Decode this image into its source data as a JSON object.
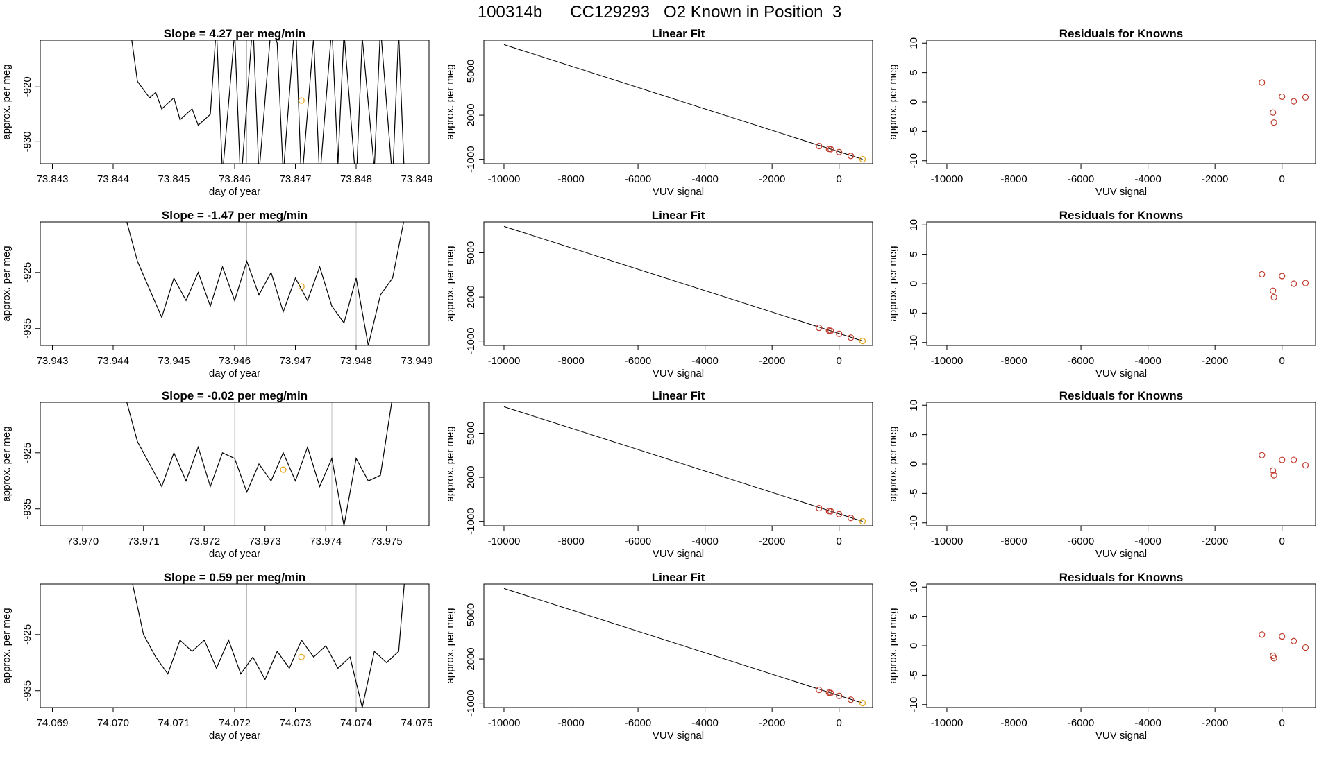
{
  "title": "100314b      CC129293   O2 Known in Position  3",
  "chart_data": [
    {
      "type": "line",
      "panel": "time-series",
      "row": 0,
      "title": "Slope =  4.27  per meg/min",
      "xlabel": "day of year",
      "ylabel": "approx. per meg",
      "xlim": [
        73.8428,
        73.8492
      ],
      "ylim": [
        -934,
        -911.5
      ],
      "xticks": [
        "73.843",
        "73.844",
        "73.845",
        "73.846",
        "73.847",
        "73.848",
        "73.849"
      ],
      "yticks": [
        "-920",
        "-930"
      ],
      "ytick_values": [
        -920,
        -930
      ],
      "x": [
        73.8443,
        73.8444,
        73.8446,
        73.8447,
        73.8448,
        73.845,
        73.8451,
        73.8453,
        73.8454,
        73.8456,
        73.8457,
        73.8458,
        73.846,
        73.8461,
        73.8463,
        73.8464,
        73.8466,
        73.8467,
        73.8468,
        73.847,
        73.8471,
        73.8473,
        73.8474,
        73.8476,
        73.8477,
        73.8478,
        73.848,
        73.8481,
        73.8483,
        73.8484,
        73.8486,
        73.8487,
        73.8488
      ],
      "y": [
        -911,
        -919,
        -922,
        -921,
        -924,
        -922,
        -926,
        -924,
        -927,
        -925,
        -909,
        -936,
        -910,
        -938,
        -908,
        -936,
        -909,
        -912,
        -936,
        -907,
        -938,
        -911,
        -937,
        -909,
        -934,
        -910,
        -938,
        -911,
        -935,
        -909,
        -937,
        -910,
        -938
      ],
      "highlight_points": [
        {
          "x": 73.8471,
          "y": -922.5
        }
      ],
      "vlines": [
        73.8462
      ]
    },
    {
      "type": "scatter",
      "panel": "linear-fit",
      "row": 0,
      "title": "Linear Fit",
      "xlabel": "VUV signal",
      "ylabel": "approx. per meg",
      "xlim": [
        -10600,
        1000
      ],
      "ylim": [
        -1300,
        7100
      ],
      "xticks": [
        "-10000",
        "-8000",
        "-6000",
        "-4000",
        "-2000",
        "0"
      ],
      "xtick_values": [
        -10000,
        -8000,
        -6000,
        -4000,
        -2000,
        0
      ],
      "yticks": [
        "-1000",
        "2000",
        "5000"
      ],
      "ytick_values": [
        -1000,
        2000,
        5000
      ],
      "fit_line": {
        "x": [
          -10000,
          700
        ],
        "y": [
          6800,
          -1000
        ]
      },
      "points": {
        "x": [
          -600,
          -300,
          -250,
          0,
          350
        ],
        "y": [
          -100,
          -290,
          -310,
          -510,
          -770
        ]
      },
      "highlight_points": [
        {
          "x": 700,
          "y": -1000
        }
      ]
    },
    {
      "type": "scatter",
      "panel": "residuals",
      "row": 0,
      "title": "Residuals for Knowns",
      "xlabel": "VUV signal",
      "ylabel": "approx. per meg",
      "xlim": [
        -10600,
        1000
      ],
      "ylim": [
        -10.5,
        10.5
      ],
      "xticks": [
        "-10000",
        "-8000",
        "-6000",
        "-4000",
        "-2000",
        "0"
      ],
      "xtick_values": [
        -10000,
        -8000,
        -6000,
        -4000,
        -2000,
        0
      ],
      "yticks": [
        "-10",
        "-5",
        "0",
        "5",
        "10"
      ],
      "ytick_values": [
        -10,
        -5,
        0,
        5,
        10
      ],
      "points": {
        "x": [
          -600,
          -270,
          -240,
          0,
          350,
          700
        ],
        "y": [
          3.3,
          -1.8,
          -3.5,
          0.9,
          0.1,
          0.8
        ]
      }
    },
    {
      "type": "line",
      "panel": "time-series",
      "row": 1,
      "title": "Slope =  -1.47  per meg/min",
      "xlabel": "day of year",
      "ylabel": "approx. per meg",
      "xlim": [
        73.9428,
        73.9492
      ],
      "ylim": [
        -938,
        -916
      ],
      "xticks": [
        "73.943",
        "73.944",
        "73.945",
        "73.946",
        "73.947",
        "73.948",
        "73.949"
      ],
      "yticks": [
        "-925",
        "-935"
      ],
      "ytick_values": [
        -925,
        -935
      ],
      "x": [
        73.9442,
        73.9444,
        73.9446,
        73.9448,
        73.945,
        73.9452,
        73.9454,
        73.9456,
        73.9458,
        73.946,
        73.9462,
        73.9464,
        73.9466,
        73.9468,
        73.947,
        73.9472,
        73.9474,
        73.9476,
        73.9478,
        73.948,
        73.9482,
        73.9484,
        73.9486,
        73.9488
      ],
      "y": [
        -915,
        -923,
        -928,
        -933,
        -926,
        -930,
        -925,
        -931,
        -924,
        -930,
        -923,
        -929,
        -925,
        -932,
        -926,
        -930,
        -924,
        -931,
        -934,
        -926,
        -938,
        -929,
        -926,
        -915
      ],
      "highlight_points": [
        {
          "x": 73.9471,
          "y": -927.5
        }
      ],
      "vlines": [
        73.9462,
        73.948
      ]
    },
    {
      "type": "scatter",
      "panel": "linear-fit",
      "row": 1,
      "title": "Linear Fit",
      "xlabel": "VUV signal",
      "ylabel": "approx. per meg",
      "xlim": [
        -10600,
        1000
      ],
      "ylim": [
        -1300,
        7100
      ],
      "xticks": [
        "-10000",
        "-8000",
        "-6000",
        "-4000",
        "-2000",
        "0"
      ],
      "xtick_values": [
        -10000,
        -8000,
        -6000,
        -4000,
        -2000,
        0
      ],
      "yticks": [
        "-1000",
        "2000",
        "5000"
      ],
      "ytick_values": [
        -1000,
        2000,
        5000
      ],
      "fit_line": {
        "x": [
          -10000,
          700
        ],
        "y": [
          6800,
          -1000
        ]
      },
      "points": {
        "x": [
          -600,
          -300,
          -250,
          0,
          350
        ],
        "y": [
          -100,
          -290,
          -310,
          -510,
          -770
        ]
      },
      "highlight_points": [
        {
          "x": 700,
          "y": -1000
        }
      ]
    },
    {
      "type": "scatter",
      "panel": "residuals",
      "row": 1,
      "title": "Residuals for Knowns",
      "xlabel": "VUV signal",
      "ylabel": "approx. per meg",
      "xlim": [
        -10600,
        1000
      ],
      "ylim": [
        -10.5,
        10.5
      ],
      "xticks": [
        "-10000",
        "-8000",
        "-6000",
        "-4000",
        "-2000",
        "0"
      ],
      "xtick_values": [
        -10000,
        -8000,
        -6000,
        -4000,
        -2000,
        0
      ],
      "yticks": [
        "-10",
        "-5",
        "0",
        "5",
        "10"
      ],
      "ytick_values": [
        -10,
        -5,
        0,
        5,
        10
      ],
      "points": {
        "x": [
          -600,
          -270,
          -240,
          0,
          350,
          700
        ],
        "y": [
          1.6,
          -1.2,
          -2.3,
          1.3,
          0.0,
          0.1
        ]
      }
    },
    {
      "type": "line",
      "panel": "time-series",
      "row": 2,
      "title": "Slope =  -0.02  per meg/min",
      "xlabel": "day of year",
      "ylabel": "approx. per meg",
      "xlim": [
        73.9693,
        73.9757
      ],
      "ylim": [
        -938,
        -916
      ],
      "xticks": [
        "73.970",
        "73.971",
        "73.972",
        "73.973",
        "73.974",
        "73.975"
      ],
      "yticks": [
        "-925",
        "-935"
      ],
      "ytick_values": [
        -925,
        -935
      ],
      "x": [
        73.9707,
        73.9709,
        73.9711,
        73.9713,
        73.9715,
        73.9717,
        73.9719,
        73.9721,
        73.9723,
        73.9725,
        73.9727,
        73.9729,
        73.9731,
        73.9733,
        73.9735,
        73.9737,
        73.9739,
        73.9741,
        73.9743,
        73.9745,
        73.9747,
        73.9749,
        73.9751
      ],
      "y": [
        -915,
        -923,
        -927,
        -931,
        -925,
        -930,
        -924,
        -931,
        -925,
        -926,
        -932,
        -927,
        -930,
        -925,
        -930,
        -924,
        -931,
        -926,
        -938,
        -926,
        -930,
        -929,
        -915
      ],
      "highlight_points": [
        {
          "x": 73.9733,
          "y": -928
        }
      ],
      "vlines": [
        73.9725,
        73.9741
      ]
    },
    {
      "type": "scatter",
      "panel": "linear-fit",
      "row": 2,
      "title": "Linear Fit",
      "xlabel": "VUV signal",
      "ylabel": "approx. per meg",
      "xlim": [
        -10600,
        1000
      ],
      "ylim": [
        -1300,
        7100
      ],
      "xticks": [
        "-10000",
        "-8000",
        "-6000",
        "-4000",
        "-2000",
        "0"
      ],
      "xtick_values": [
        -10000,
        -8000,
        -6000,
        -4000,
        -2000,
        0
      ],
      "yticks": [
        "-1000",
        "2000",
        "5000"
      ],
      "ytick_values": [
        -1000,
        2000,
        5000
      ],
      "fit_line": {
        "x": [
          -10000,
          700
        ],
        "y": [
          6800,
          -1000
        ]
      },
      "points": {
        "x": [
          -600,
          -300,
          -250,
          0,
          350
        ],
        "y": [
          -100,
          -290,
          -310,
          -510,
          -770
        ]
      },
      "highlight_points": [
        {
          "x": 700,
          "y": -1000
        }
      ]
    },
    {
      "type": "scatter",
      "panel": "residuals",
      "row": 2,
      "title": "Residuals for Knowns",
      "xlabel": "VUV signal",
      "ylabel": "approx. per meg",
      "xlim": [
        -10600,
        1000
      ],
      "ylim": [
        -10.5,
        10.5
      ],
      "xticks": [
        "-10000",
        "-8000",
        "-6000",
        "-4000",
        "-2000",
        "0"
      ],
      "xtick_values": [
        -10000,
        -8000,
        -6000,
        -4000,
        -2000,
        0
      ],
      "yticks": [
        "-10",
        "-5",
        "0",
        "5",
        "10"
      ],
      "ytick_values": [
        -10,
        -5,
        0,
        5,
        10
      ],
      "points": {
        "x": [
          -600,
          -270,
          -240,
          0,
          350,
          700
        ],
        "y": [
          1.5,
          -1.1,
          -1.9,
          0.7,
          0.7,
          -0.2
        ]
      }
    },
    {
      "type": "line",
      "panel": "time-series",
      "row": 3,
      "title": "Slope =  0.59  per meg/min",
      "xlabel": "day of year",
      "ylabel": "approx. per meg",
      "xlim": [
        74.0688,
        74.0752
      ],
      "ylim": [
        -938,
        -916
      ],
      "xticks": [
        "74.069",
        "74.070",
        "74.071",
        "74.072",
        "74.073",
        "74.074",
        "74.075"
      ],
      "yticks": [
        "-925",
        "-935"
      ],
      "ytick_values": [
        -925,
        -935
      ],
      "x": [
        74.0703,
        74.0705,
        74.0707,
        74.0709,
        74.0711,
        74.0713,
        74.0715,
        74.0717,
        74.0719,
        74.0721,
        74.0723,
        74.0725,
        74.0727,
        74.0729,
        74.0731,
        74.0733,
        74.0735,
        74.0737,
        74.0739,
        74.0741,
        74.0743,
        74.0745,
        74.0747,
        74.0748
      ],
      "y": [
        -915,
        -925,
        -929,
        -932,
        -926,
        -928,
        -926,
        -931,
        -926,
        -932,
        -929,
        -933,
        -928,
        -931,
        -926,
        -929,
        -927,
        -931,
        -929,
        -938,
        -928,
        -930,
        -928,
        -915
      ],
      "highlight_points": [
        {
          "x": 74.0731,
          "y": -929
        }
      ],
      "vlines": [
        74.0722,
        74.074
      ]
    },
    {
      "type": "scatter",
      "panel": "linear-fit",
      "row": 3,
      "title": "Linear Fit",
      "xlabel": "VUV signal",
      "ylabel": "approx. per meg",
      "xlim": [
        -10600,
        1000
      ],
      "ylim": [
        -1300,
        7100
      ],
      "xticks": [
        "-10000",
        "-8000",
        "-6000",
        "-4000",
        "-2000",
        "0"
      ],
      "xtick_values": [
        -10000,
        -8000,
        -6000,
        -4000,
        -2000,
        0
      ],
      "yticks": [
        "-1000",
        "2000",
        "5000"
      ],
      "ytick_values": [
        -1000,
        2000,
        5000
      ],
      "fit_line": {
        "x": [
          -10000,
          700
        ],
        "y": [
          6800,
          -1000
        ]
      },
      "points": {
        "x": [
          -600,
          -300,
          -250,
          0,
          350
        ],
        "y": [
          -100,
          -290,
          -310,
          -510,
          -770
        ]
      },
      "highlight_points": [
        {
          "x": 700,
          "y": -1000
        }
      ]
    },
    {
      "type": "scatter",
      "panel": "residuals",
      "row": 3,
      "title": "Residuals for Knowns",
      "xlabel": "VUV signal",
      "ylabel": "approx. per meg",
      "xlim": [
        -10600,
        1000
      ],
      "ylim": [
        -10.5,
        10.5
      ],
      "xticks": [
        "-10000",
        "-8000",
        "-6000",
        "-4000",
        "-2000",
        "0"
      ],
      "xtick_values": [
        -10000,
        -8000,
        -6000,
        -4000,
        -2000,
        0
      ],
      "yticks": [
        "-10",
        "-5",
        "0",
        "5",
        "10"
      ],
      "ytick_values": [
        -10,
        -5,
        0,
        5,
        10
      ],
      "points": {
        "x": [
          -600,
          -270,
          -240,
          0,
          350,
          700
        ],
        "y": [
          1.9,
          -1.7,
          -2.1,
          1.6,
          0.8,
          -0.3
        ]
      }
    }
  ],
  "colors": {
    "line": "#000000",
    "points": "#c0392b",
    "highlight": "#e8a317",
    "vline": "#bbbbbb",
    "axis": "#000000"
  }
}
